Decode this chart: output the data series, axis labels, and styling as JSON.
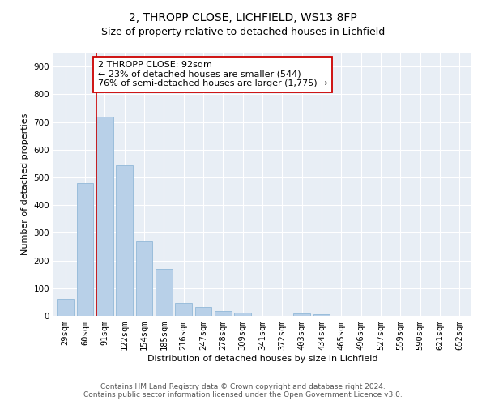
{
  "title1": "2, THROPP CLOSE, LICHFIELD, WS13 8FP",
  "title2": "Size of property relative to detached houses in Lichfield",
  "xlabel": "Distribution of detached houses by size in Lichfield",
  "ylabel": "Number of detached properties",
  "categories": [
    "29sqm",
    "60sqm",
    "91sqm",
    "122sqm",
    "154sqm",
    "185sqm",
    "216sqm",
    "247sqm",
    "278sqm",
    "309sqm",
    "341sqm",
    "372sqm",
    "403sqm",
    "434sqm",
    "465sqm",
    "496sqm",
    "527sqm",
    "559sqm",
    "590sqm",
    "621sqm",
    "652sqm"
  ],
  "values": [
    62,
    480,
    720,
    543,
    270,
    170,
    47,
    33,
    17,
    12,
    0,
    0,
    8,
    5,
    0,
    0,
    0,
    0,
    0,
    0,
    0
  ],
  "bar_color": "#b8d0e8",
  "bar_edge_color": "#92b8d8",
  "vline_color": "#cc0000",
  "annotation_line1": "2 THROPP CLOSE: 92sqm",
  "annotation_line2": "← 23% of detached houses are smaller (544)",
  "annotation_line3": "76% of semi-detached houses are larger (1,775) →",
  "annotation_box_color": "#ffffff",
  "annotation_box_edge": "#cc0000",
  "ylim": [
    0,
    950
  ],
  "yticks": [
    0,
    100,
    200,
    300,
    400,
    500,
    600,
    700,
    800,
    900
  ],
  "background_color": "#e8eef5",
  "footer": "Contains HM Land Registry data © Crown copyright and database right 2024.\nContains public sector information licensed under the Open Government Licence v3.0.",
  "title1_fontsize": 10,
  "title2_fontsize": 9,
  "axis_label_fontsize": 8,
  "tick_fontsize": 7.5,
  "annotation_fontsize": 8,
  "footer_fontsize": 6.5
}
